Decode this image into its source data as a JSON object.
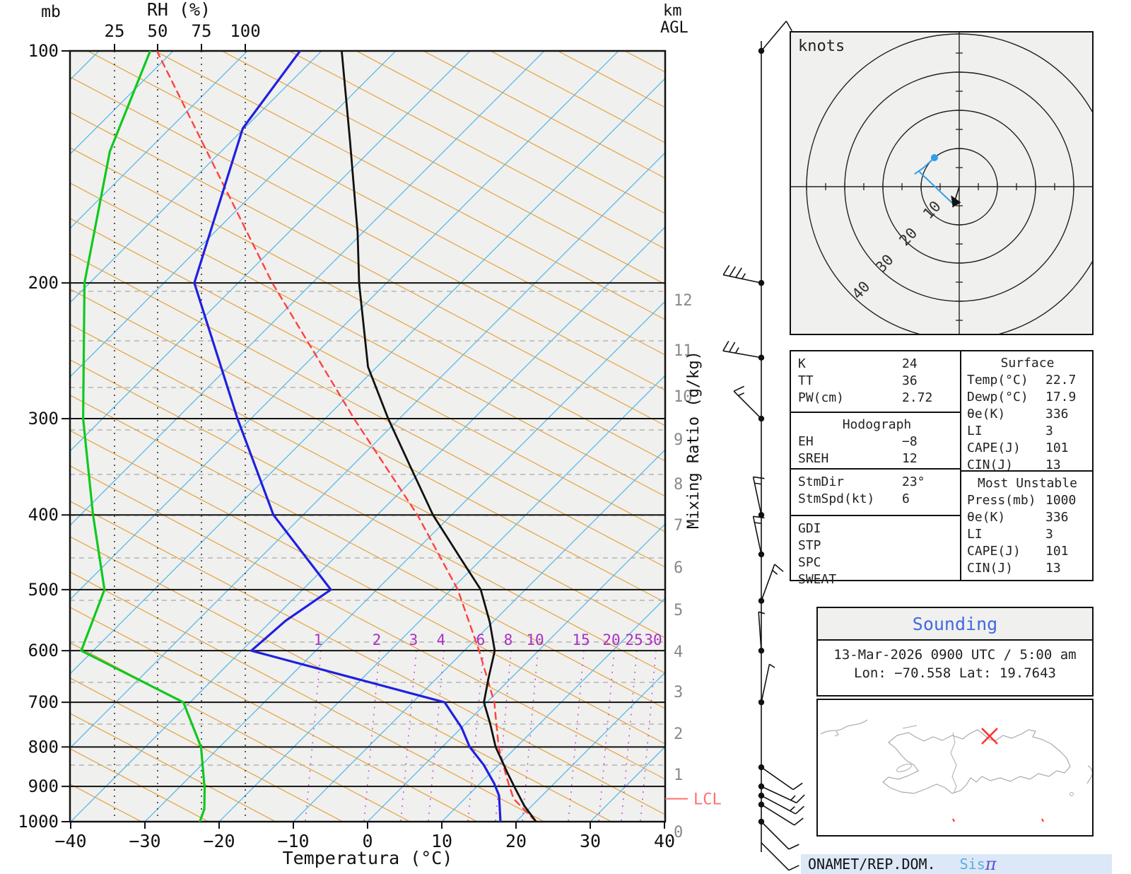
{
  "labels": {
    "pressure_unit": "mb",
    "rh_axis": "RH (%)",
    "km_line1": "km",
    "km_line2": "AGL",
    "mixing_ratio_axis": "Mixing Ratio (g/kg)",
    "temp_axis": "Temperatura (°C)",
    "lcl": "LCL",
    "knots": "knots"
  },
  "chart_data": {
    "type": "skewt-logp",
    "pressure_ticks": [
      100,
      200,
      300,
      400,
      500,
      600,
      700,
      800,
      900,
      1000
    ],
    "temp_ticks": [
      -40,
      -30,
      -20,
      -10,
      0,
      10,
      20,
      30,
      40
    ],
    "rh_ticks": [
      25,
      50,
      75,
      100
    ],
    "km_ticks": [
      12,
      11,
      10,
      9,
      8,
      7,
      6,
      5,
      4,
      3,
      2,
      1,
      0
    ],
    "mixing_ratio_labels": [
      1,
      2,
      3,
      4,
      6,
      8,
      10,
      15,
      20,
      25,
      30
    ],
    "xlabel": "Temperatura (°C)",
    "ylabel": "mb",
    "xlim": [
      -40,
      40
    ],
    "ylim_mb": [
      1000,
      100
    ],
    "series": {
      "temperature": [
        [
          100,
          -107.3
        ],
        [
          131,
          -94.0
        ],
        [
          172,
          -80.7
        ],
        [
          200,
          -73.7
        ],
        [
          257,
          -61.2
        ],
        [
          300,
          -51.5
        ],
        [
          346,
          -42.1
        ],
        [
          400,
          -32.5
        ],
        [
          455,
          -23.0
        ],
        [
          500,
          -16.0
        ],
        [
          551,
          -10.4
        ],
        [
          600,
          -5.9
        ],
        [
          652,
          -3.0
        ],
        [
          700,
          -0.4
        ],
        [
          746,
          3.3
        ],
        [
          800,
          7.2
        ],
        [
          862,
          12.1
        ],
        [
          900,
          15.0
        ],
        [
          954,
          19.0
        ],
        [
          1000,
          22.7
        ]
      ],
      "dewpoint": [
        [
          100,
          -112.9
        ],
        [
          126,
          -110.2
        ],
        [
          200,
          -95.9
        ],
        [
          300,
          -71.8
        ],
        [
          400,
          -54.0
        ],
        [
          500,
          -36.2
        ],
        [
          549,
          -38.1
        ],
        [
          600,
          -38.7
        ],
        [
          700,
          -5.7
        ],
        [
          755,
          0.0
        ],
        [
          800,
          3.7
        ],
        [
          844,
          8.0
        ],
        [
          892,
          11.9
        ],
        [
          925,
          14.2
        ],
        [
          1000,
          17.9
        ]
      ],
      "wet_bulb": [
        [
          100,
          -133.1
        ],
        [
          135,
          -125.0
        ],
        [
          200,
          -110.7
        ],
        [
          300,
          -92.6
        ],
        [
          400,
          -78.3
        ],
        [
          500,
          -66.7
        ],
        [
          600,
          -61.6
        ],
        [
          700,
          -40.9
        ],
        [
          800,
          -32.5
        ],
        [
          906,
          -26.4
        ],
        [
          963,
          -23.7
        ],
        [
          1000,
          -22.6
        ]
      ],
      "parcel": [
        [
          100,
          -132.2
        ],
        [
          200,
          -85.4
        ],
        [
          300,
          -56.1
        ],
        [
          400,
          -34.6
        ],
        [
          500,
          -19.1
        ],
        [
          600,
          -8.0
        ],
        [
          700,
          1.0
        ],
        [
          800,
          7.6
        ],
        [
          878,
          12.9
        ],
        [
          934,
          16.6
        ],
        [
          1000,
          22.7
        ]
      ]
    },
    "lcl_pressure_mb": 934,
    "wind_barbs": [
      {
        "p": 100,
        "dir": 40,
        "kt": 10
      },
      {
        "p": 200,
        "dir": -78,
        "kt": 35
      },
      {
        "p": 250,
        "dir": -80,
        "kt": 25
      },
      {
        "p": 300,
        "dir": -45,
        "kt": 15
      },
      {
        "p": 400,
        "dir": -12,
        "kt": 15
      },
      {
        "p": 450,
        "dir": -12,
        "kt": 15
      },
      {
        "p": 517,
        "dir": 20,
        "kt": 15
      },
      {
        "p": 600,
        "dir": -4,
        "kt": 5
      },
      {
        "p": 700,
        "dir": 12,
        "kt": 5
      },
      {
        "p": 850,
        "dir": 125,
        "kt": 10
      },
      {
        "p": 900,
        "dir": 115,
        "kt": 15
      },
      {
        "p": 925,
        "dir": 118,
        "kt": 15
      },
      {
        "p": 950,
        "dir": 122,
        "kt": 10
      },
      {
        "p": 1000,
        "dir": 135,
        "kt": 10
      },
      {
        "p": 1065,
        "dir": 135,
        "kt": 10
      }
    ],
    "hodograph": {
      "unit_label": "knots",
      "rings_kt": [
        10,
        20,
        30,
        40
      ],
      "trace_uv_kt": [
        [
          -6.5,
          -7.6
        ],
        [
          -9.3,
          -5.0
        ],
        [
          -11.7,
          -3.3
        ],
        [
          -10.6,
          -4.1
        ],
        [
          -9.3,
          -2.8
        ],
        [
          -1.3,
          4.8
        ]
      ],
      "storm_motion_uv_kt": [
        -1.7,
        5.4
      ]
    }
  },
  "tables": {
    "indices": {
      "rows": [
        {
          "label": "K",
          "value": "24"
        },
        {
          "label": "TT",
          "value": "36"
        },
        {
          "label": "PW(cm)",
          "value": "2.72"
        }
      ]
    },
    "hodograph_box": {
      "title": "Hodograph",
      "rows": [
        {
          "label": "EH",
          "value": "−8"
        },
        {
          "label": "SREH",
          "value": "12"
        }
      ]
    },
    "storm": {
      "rows": [
        {
          "label": "StmDir",
          "value": "23°"
        },
        {
          "label": "StmSpd(kt)",
          "value": "6"
        }
      ]
    },
    "extra_indices": {
      "rows": [
        {
          "label": "GDI",
          "value": ""
        },
        {
          "label": "STP",
          "value": ""
        },
        {
          "label": "SPC",
          "value": ""
        },
        {
          "label": "SWEAT",
          "value": ""
        }
      ]
    },
    "surface": {
      "title": "Surface",
      "rows": [
        {
          "label": "Temp(°C)",
          "value": "22.7"
        },
        {
          "label": "Dewp(°C)",
          "value": "17.9"
        },
        {
          "label": "θe(K)",
          "value": "336"
        },
        {
          "label": "LI",
          "value": "3"
        },
        {
          "label": "CAPE(J)",
          "value": "101"
        },
        {
          "label": "CIN(J)",
          "value": "13"
        }
      ]
    },
    "most_unstable": {
      "title": "Most Unstable",
      "rows": [
        {
          "label": "Press(mb)",
          "value": "1000"
        },
        {
          "label": "θe(K)",
          "value": "336"
        },
        {
          "label": "LI",
          "value": "3"
        },
        {
          "label": "CAPE(J)",
          "value": "101"
        },
        {
          "label": "CIN(J)",
          "value": "13"
        }
      ]
    }
  },
  "sounding": {
    "title": "Sounding",
    "datetime": "13-Mar-2026 0900 UTC / 5:00 am",
    "location": "Lon: −70.558    Lat: 19.7643",
    "marker": {
      "lon": -70.558,
      "lat": 19.7643
    }
  },
  "footer": {
    "org": "ONAMET/REP.DOM.",
    "brand_prefix": "Sis",
    "brand_symbol": "π"
  },
  "colors": {
    "plot_bg": "#f0f0ee",
    "isotherm": "#4fb6ea",
    "dry_adiabat": "#e6a23c",
    "mixing_line": "#c050d0",
    "mixing_label": "#aa30c0",
    "km_line": "#aaaaaa",
    "km_label": "#888888",
    "temperature_curve": "#111111",
    "dewpoint_curve": "#2020e0",
    "wetbulb_curve": "#10c820",
    "parcel_curve": "#ff4040",
    "lcl": "#ff7070",
    "hodo_trace": "#30a0e8",
    "sounding_title": "#4169e1",
    "footer_bg": "#dce8f7",
    "brand_prefix_color": "#58aee0",
    "brand_symbol_color": "#5b50d0",
    "map_coast": "#aaaaaa",
    "marker_color": "#ff3333"
  }
}
